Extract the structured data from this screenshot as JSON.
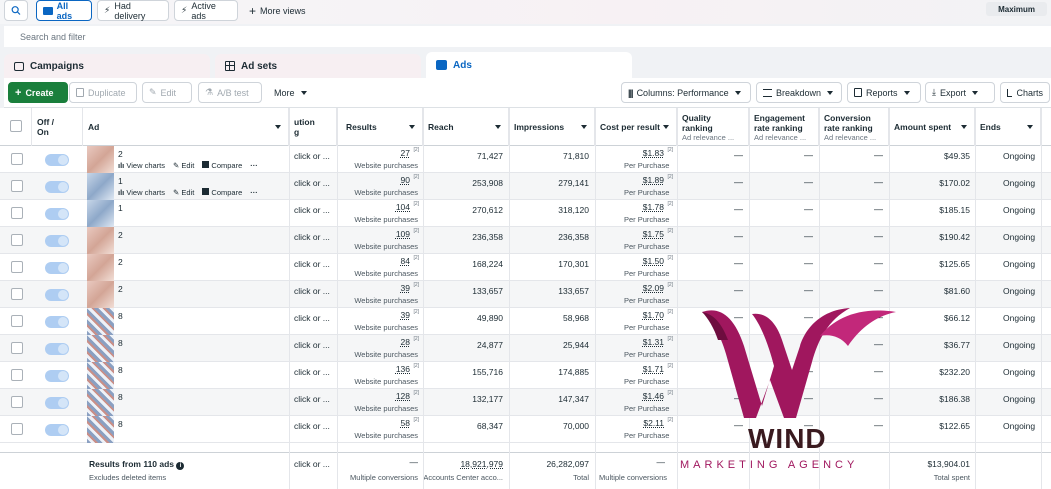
{
  "topbar": {
    "all_ads": "All ads",
    "had_delivery": "Had delivery",
    "active_ads": "Active ads",
    "more_views": "More views",
    "maximum": "Maximum"
  },
  "search": {
    "placeholder": "Search and filter"
  },
  "tabs": [
    {
      "label": "Campaigns"
    },
    {
      "label": "Ad sets"
    },
    {
      "label": "Ads"
    }
  ],
  "toolbar": {
    "create": "Create",
    "duplicate": "Duplicate",
    "edit": "Edit",
    "ab_test": "A/B test",
    "more": "More",
    "columns": "Columns: Performance",
    "breakdown": "Breakdown",
    "reports": "Reports",
    "export": "Export",
    "charts": "Charts"
  },
  "headers": {
    "off_on_1": "Off /",
    "off_on_2": "On",
    "ad": "Ad",
    "attribution_1": "ution",
    "attribution_2": "g",
    "results": "Results",
    "reach": "Reach",
    "impressions": "Impressions",
    "cost_per_result": "Cost per result",
    "quality_1": "Quality",
    "quality_2": "ranking",
    "quality_sub": "Ad relevance ...",
    "engagement_1": "Engagement",
    "engagement_2": "rate ranking",
    "engagement_sub": "Ad relevance ...",
    "conversion_1": "Conversion",
    "conversion_2": "rate ranking",
    "conversion_sub": "Ad relevance ...",
    "amount_spent": "Amount spent",
    "ends": "Ends"
  },
  "row_actions": {
    "view_charts": "View charts",
    "edit": "Edit",
    "compare": "Compare",
    "more": "···"
  },
  "rows": [
    {
      "name": "2",
      "thumb": "t1",
      "attribution": "click or ...",
      "results": "27",
      "results_sub": "Website purchases",
      "reach": "71,427",
      "impressions": "71,810",
      "cost": "$1.83",
      "cost_sub": "Per Purchase",
      "quality": "—",
      "engagement": "—",
      "conversion": "—",
      "spent": "$49.35",
      "ends": "Ongoing",
      "actions": true
    },
    {
      "name": "1",
      "thumb": "t2",
      "attribution": "click or ...",
      "results": "90",
      "results_sub": "Website purchases",
      "reach": "253,908",
      "impressions": "279,141",
      "cost": "$1.89",
      "cost_sub": "Per Purchase",
      "quality": "—",
      "engagement": "—",
      "conversion": "—",
      "spent": "$170.02",
      "ends": "Ongoing",
      "actions": true
    },
    {
      "name": "1",
      "thumb": "t2",
      "attribution": "click or ...",
      "results": "104",
      "results_sub": "Website purchases",
      "reach": "270,612",
      "impressions": "318,120",
      "cost": "$1.78",
      "cost_sub": "Per Purchase",
      "quality": "—",
      "engagement": "—",
      "conversion": "—",
      "spent": "$185.15",
      "ends": "Ongoing",
      "actions": false
    },
    {
      "name": "2",
      "thumb": "t1",
      "attribution": "click or ...",
      "results": "109",
      "results_sub": "Website purchases",
      "reach": "236,358",
      "impressions": "236,358",
      "cost": "$1.75",
      "cost_sub": "Per Purchase",
      "quality": "—",
      "engagement": "—",
      "conversion": "—",
      "spent": "$190.42",
      "ends": "Ongoing",
      "actions": false
    },
    {
      "name": "2",
      "thumb": "t1",
      "attribution": "click or ...",
      "results": "84",
      "results_sub": "Website purchases",
      "reach": "168,224",
      "impressions": "170,301",
      "cost": "$1.50",
      "cost_sub": "Per Purchase",
      "quality": "—",
      "engagement": "—",
      "conversion": "—",
      "spent": "$125.65",
      "ends": "Ongoing",
      "actions": false
    },
    {
      "name": "2",
      "thumb": "t1",
      "attribution": "click or ...",
      "results": "39",
      "results_sub": "Website purchases",
      "reach": "133,657",
      "impressions": "133,657",
      "cost": "$2.09",
      "cost_sub": "Per Purchase",
      "quality": "—",
      "engagement": "—",
      "conversion": "—",
      "spent": "$81.60",
      "ends": "Ongoing",
      "actions": false
    },
    {
      "name": "8",
      "thumb": "t3",
      "attribution": "click or ...",
      "results": "39",
      "results_sub": "Website purchases",
      "reach": "49,890",
      "impressions": "58,968",
      "cost": "$1.70",
      "cost_sub": "Per Purchase",
      "quality": "—",
      "engagement": "—",
      "conversion": "—",
      "spent": "$66.12",
      "ends": "Ongoing",
      "actions": false
    },
    {
      "name": "8",
      "thumb": "t3",
      "attribution": "click or ...",
      "results": "28",
      "results_sub": "Website purchases",
      "reach": "24,877",
      "impressions": "25,944",
      "cost": "$1.31",
      "cost_sub": "Per Purchase",
      "quality": "—",
      "engagement": "—",
      "conversion": "—",
      "spent": "$36.77",
      "ends": "Ongoing",
      "actions": false
    },
    {
      "name": "8",
      "thumb": "t3",
      "attribution": "click or ...",
      "results": "136",
      "results_sub": "Website purchases",
      "reach": "155,716",
      "impressions": "174,885",
      "cost": "$1.71",
      "cost_sub": "Per Purchase",
      "quality": "—",
      "engagement": "—",
      "conversion": "—",
      "spent": "$232.20",
      "ends": "Ongoing",
      "actions": false
    },
    {
      "name": "8",
      "thumb": "t3",
      "attribution": "click or ...",
      "results": "128",
      "results_sub": "Website purchases",
      "reach": "132,177",
      "impressions": "147,347",
      "cost": "$1.46",
      "cost_sub": "Per Purchase",
      "quality": "—",
      "engagement": "—",
      "conversion": "—",
      "spent": "$186.38",
      "ends": "Ongoing",
      "actions": false
    },
    {
      "name": "8",
      "thumb": "t3",
      "attribution": "click or ...",
      "results": "58",
      "results_sub": "Website purchases",
      "reach": "68,347",
      "impressions": "70,000",
      "cost": "$2.11",
      "cost_sub": "Per Purchase",
      "quality": "—",
      "engagement": "—",
      "conversion": "—",
      "spent": "$122.65",
      "ends": "Ongoing",
      "actions": false
    }
  ],
  "footer": {
    "label": "Results from 110 ads",
    "sub": "Excludes deleted items",
    "attribution": "click or ...",
    "results_dash": "—",
    "results_sub": "Multiple conversions",
    "reach": "18,921,979",
    "reach_sub": "Accounts Center acco...",
    "impressions": "26,282,097",
    "impressions_sub": "Total",
    "cost_dash": "—",
    "cost_sub": "Multiple conversions",
    "spent": "$13,904.01",
    "spent_sub": "Total spent"
  },
  "watermark": {
    "title": "WIND",
    "subtitle": "MARKETING AGENCY",
    "color": "#a0175e"
  }
}
